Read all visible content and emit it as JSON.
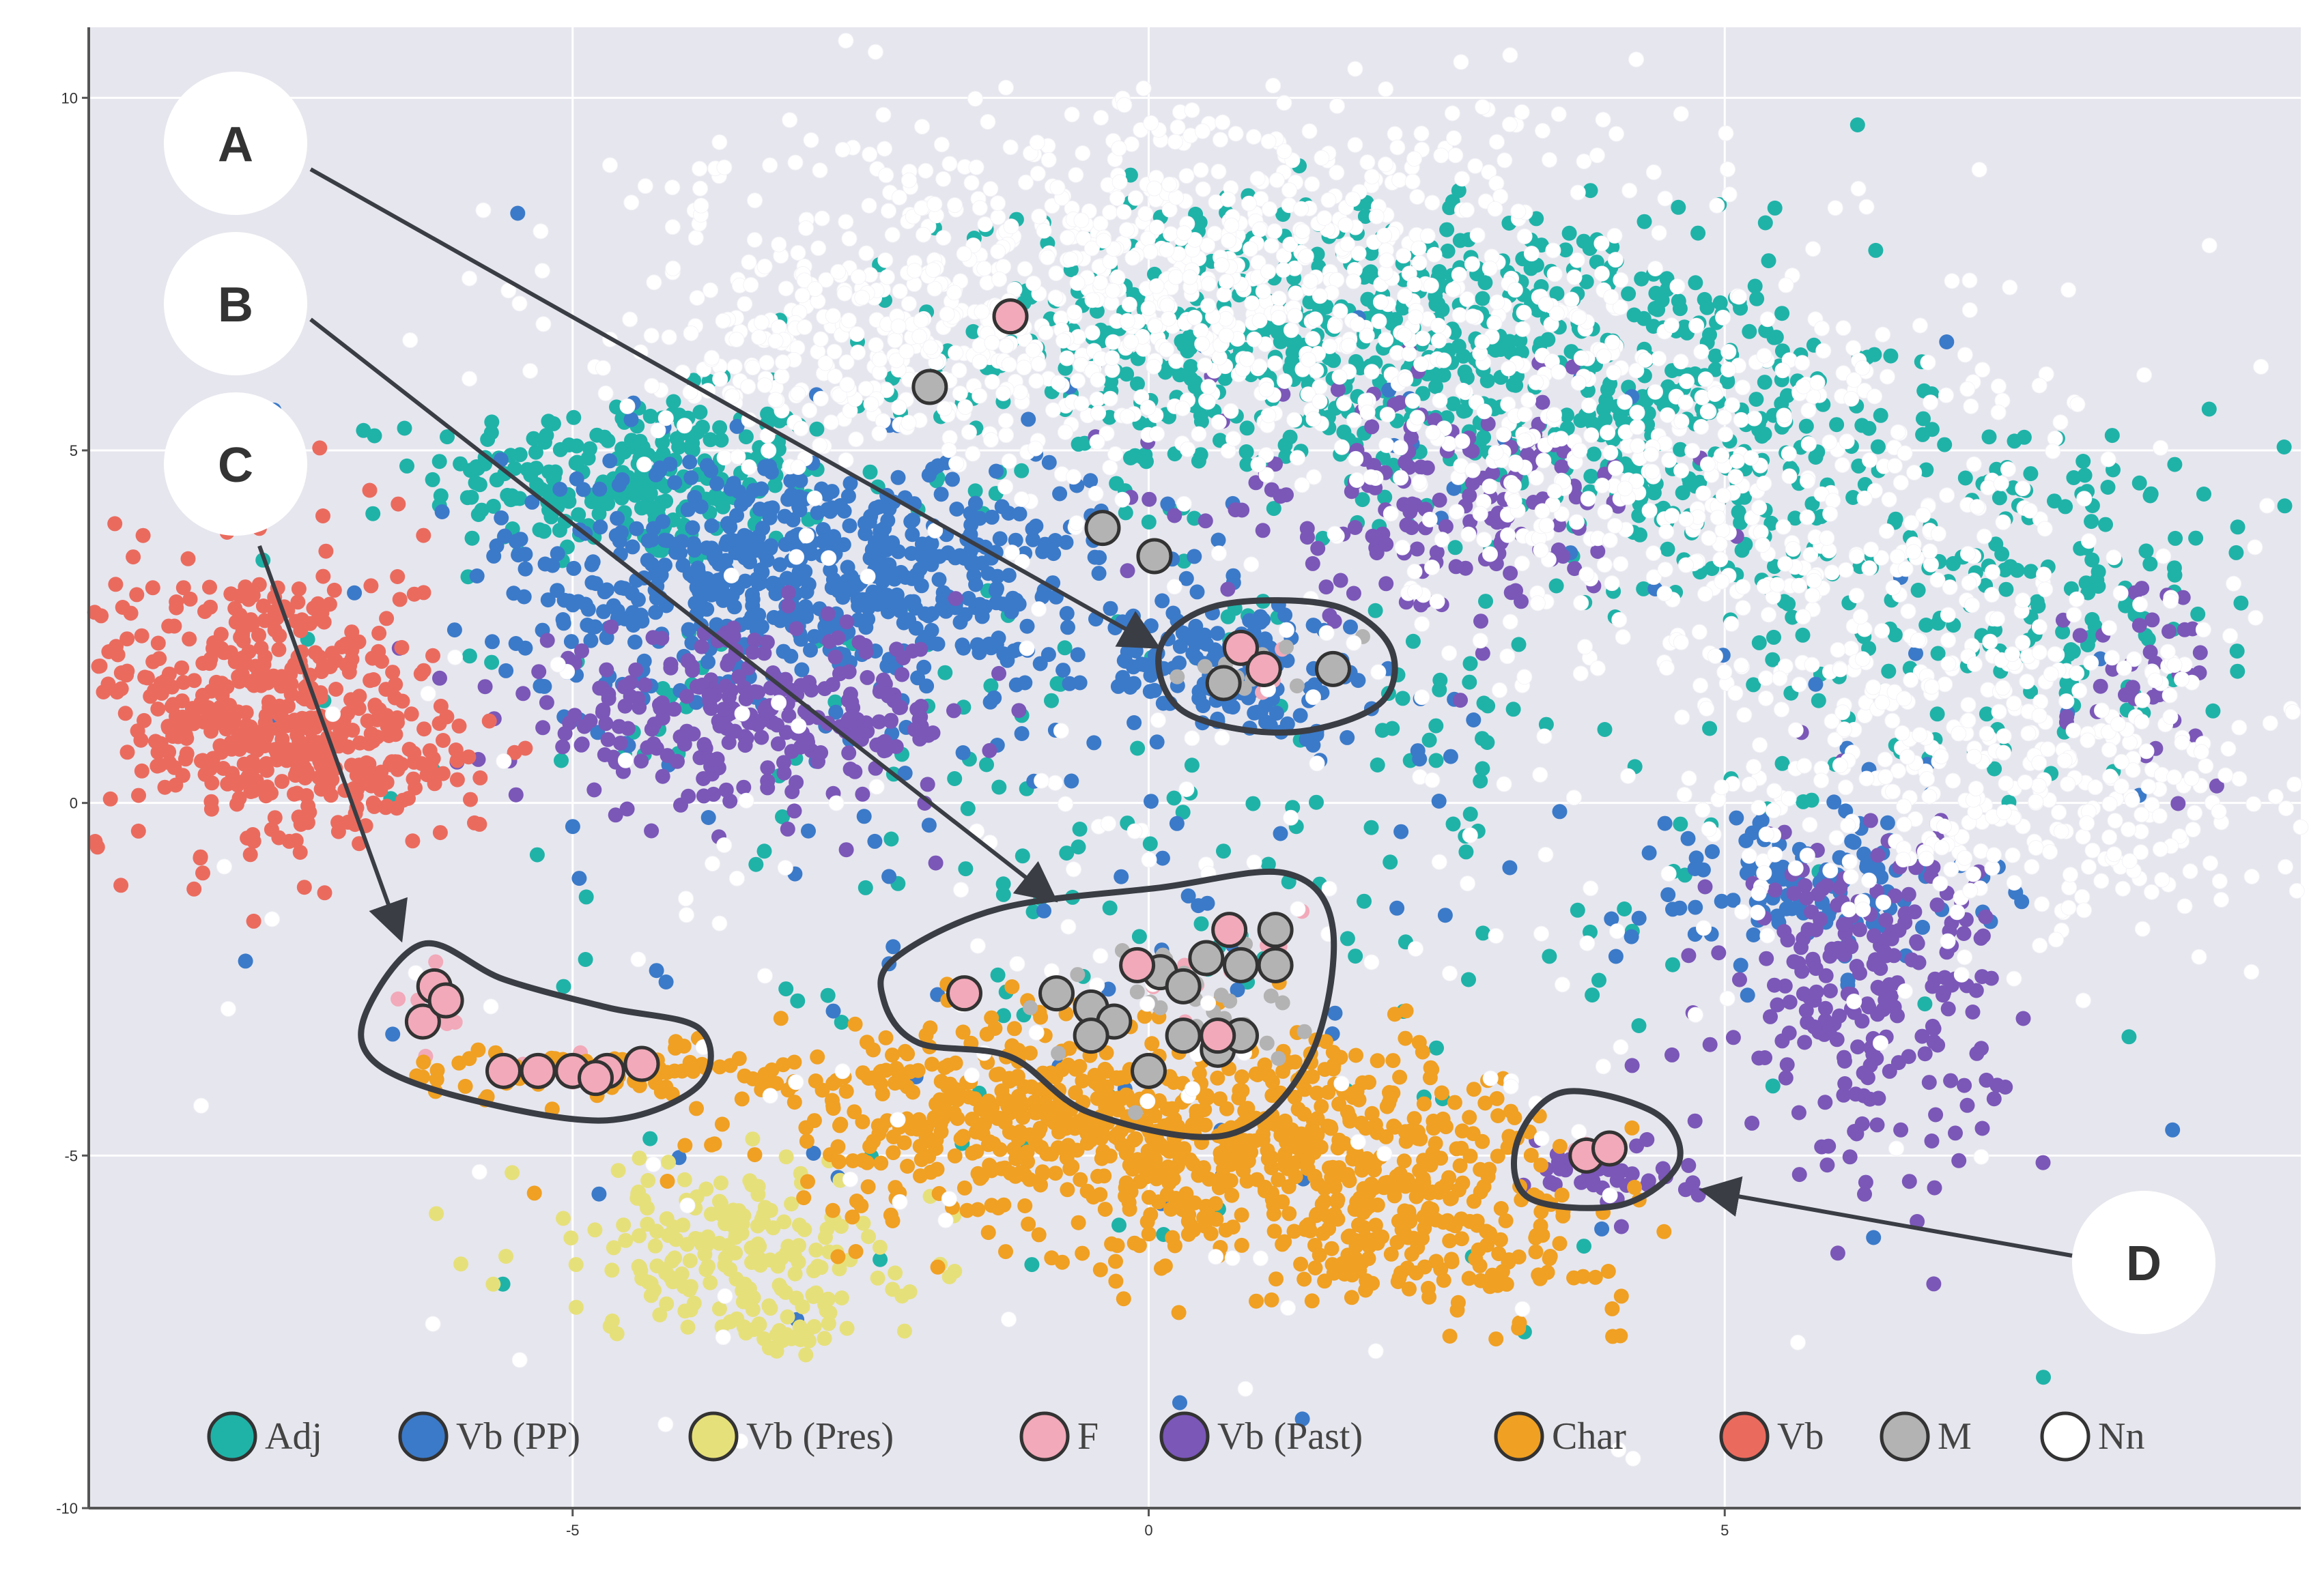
{
  "chart_data": {
    "type": "scatter",
    "title": "",
    "xlabel": "",
    "ylabel": "",
    "xlim": [
      -9.2,
      10.0
    ],
    "ylim": [
      -10.0,
      11.0
    ],
    "x_ticks": [
      -5,
      0,
      5
    ],
    "y_ticks": [
      10,
      5,
      0,
      -5,
      -10
    ],
    "x_tick_labels": [
      "-5",
      "0",
      "5"
    ],
    "y_tick_labels": [
      "10",
      "5",
      "0",
      "-5",
      "-10"
    ],
    "grid": true,
    "legend_position": "bottom",
    "series": [
      {
        "name": "Adj",
        "color": "#1fb3a8",
        "clusters": [
          {
            "cx": -4.5,
            "cy": 4.6,
            "sx": 0.9,
            "sy": 0.6,
            "n": 260
          },
          {
            "cx": 1.5,
            "cy": 6.5,
            "sx": 1.6,
            "sy": 1.0,
            "n": 520
          },
          {
            "cx": 4.5,
            "cy": 5.5,
            "sx": 1.0,
            "sy": 1.2,
            "n": 280
          },
          {
            "cx": 7.5,
            "cy": 3.2,
            "sx": 1.2,
            "sy": 1.2,
            "n": 200
          },
          {
            "cx": 0.5,
            "cy": 0.5,
            "sx": 3.5,
            "sy": 3.0,
            "n": 260
          }
        ]
      },
      {
        "name": "Vb (PP)",
        "color": "#3b7ac9",
        "clusters": [
          {
            "cx": -3.0,
            "cy": 3.2,
            "sx": 1.3,
            "sy": 0.9,
            "n": 620
          },
          {
            "cx": 0.8,
            "cy": 1.9,
            "sx": 0.6,
            "sy": 0.5,
            "n": 140
          },
          {
            "cx": 5.7,
            "cy": -1.2,
            "sx": 0.8,
            "sy": 0.6,
            "n": 120
          },
          {
            "cx": 0.0,
            "cy": 0.0,
            "sx": 3.5,
            "sy": 3.5,
            "n": 120
          }
        ]
      },
      {
        "name": "Vb (Pres)",
        "color": "#e6e07a",
        "clusters": [
          {
            "cx": -3.7,
            "cy": -6.3,
            "sx": 0.9,
            "sy": 0.6,
            "n": 170
          },
          {
            "cx": -3.1,
            "cy": -7.2,
            "sx": 0.4,
            "sy": 0.4,
            "n": 50
          }
        ]
      },
      {
        "name": "F",
        "color": "#f2a9b9",
        "clusters": [
          {
            "cx": -6.2,
            "cy": -2.9,
            "sx": 0.15,
            "sy": 0.4,
            "n": 10
          },
          {
            "cx": -5.0,
            "cy": -3.8,
            "sx": 0.4,
            "sy": 0.1,
            "n": 12
          },
          {
            "cx": 0.9,
            "cy": 2.0,
            "sx": 0.15,
            "sy": 0.2,
            "n": 6
          },
          {
            "cx": 0.5,
            "cy": -2.5,
            "sx": 0.4,
            "sy": 0.5,
            "n": 8
          },
          {
            "cx": 3.8,
            "cy": -4.9,
            "sx": 0.1,
            "sy": 0.05,
            "n": 3
          }
        ]
      },
      {
        "name": "Vb (Past)",
        "color": "#7b57b8",
        "clusters": [
          {
            "cx": -3.5,
            "cy": 1.2,
            "sx": 1.0,
            "sy": 0.6,
            "n": 280
          },
          {
            "cx": 2.5,
            "cy": 4.2,
            "sx": 1.0,
            "sy": 0.8,
            "n": 160
          },
          {
            "cx": 6.2,
            "cy": -2.6,
            "sx": 0.6,
            "sy": 1.2,
            "n": 240
          },
          {
            "cx": 3.9,
            "cy": -5.2,
            "sx": 0.3,
            "sy": 0.25,
            "n": 40
          },
          {
            "cx": 8.8,
            "cy": 1.8,
            "sx": 0.4,
            "sy": 0.8,
            "n": 40
          }
        ]
      },
      {
        "name": "Char",
        "color": "#f0a022",
        "clusters": [
          {
            "cx": -1.0,
            "cy": -4.5,
            "sx": 1.2,
            "sy": 0.7,
            "n": 420
          },
          {
            "cx": 1.3,
            "cy": -5.0,
            "sx": 1.2,
            "sy": 0.8,
            "n": 420
          },
          {
            "cx": 2.5,
            "cy": -6.2,
            "sx": 0.8,
            "sy": 0.5,
            "n": 140
          },
          {
            "cx": -4.8,
            "cy": -3.8,
            "sx": 0.9,
            "sy": 0.2,
            "n": 80
          }
        ]
      },
      {
        "name": "Vb",
        "color": "#ea6b5e",
        "clusters": [
          {
            "cx": -7.7,
            "cy": 1.4,
            "sx": 0.7,
            "sy": 1.1,
            "n": 420
          },
          {
            "cx": -6.9,
            "cy": 0.6,
            "sx": 0.6,
            "sy": 0.6,
            "n": 120
          }
        ]
      },
      {
        "name": "M",
        "color": "#b3b3b3",
        "clusters": [
          {
            "cx": 0.9,
            "cy": 1.9,
            "sx": 0.35,
            "sy": 0.25,
            "n": 10
          },
          {
            "cx": 0.3,
            "cy": -2.8,
            "sx": 0.6,
            "sy": 0.45,
            "n": 30
          }
        ]
      },
      {
        "name": "Nn",
        "color": "#ffffff",
        "clusters": [
          {
            "cx": 0.3,
            "cy": 7.5,
            "sx": 2.0,
            "sy": 1.3,
            "n": 800
          },
          {
            "cx": 5.0,
            "cy": 4.5,
            "sx": 1.8,
            "sy": 1.6,
            "n": 520
          },
          {
            "cx": 7.5,
            "cy": 0.3,
            "sx": 1.3,
            "sy": 1.2,
            "n": 420
          },
          {
            "cx": -2.5,
            "cy": 6.5,
            "sx": 1.2,
            "sy": 1.0,
            "n": 260
          },
          {
            "cx": 0.0,
            "cy": -1.5,
            "sx": 3.5,
            "sy": 3.5,
            "n": 160
          }
        ]
      }
    ],
    "highlight_points": {
      "F": [
        [
          -1.2,
          6.9
        ],
        [
          0.8,
          2.2
        ],
        [
          1.0,
          1.9
        ],
        [
          -1.6,
          -2.7
        ],
        [
          -0.1,
          -2.3
        ],
        [
          0.7,
          -1.8
        ],
        [
          0.6,
          -3.3
        ],
        [
          -6.2,
          -2.6
        ],
        [
          -6.3,
          -3.1
        ],
        [
          -6.1,
          -2.8
        ],
        [
          -5.6,
          -3.8
        ],
        [
          -5.3,
          -3.8
        ],
        [
          -5.0,
          -3.8
        ],
        [
          -4.7,
          -3.8
        ],
        [
          -4.4,
          -3.7
        ],
        [
          -4.8,
          -3.9
        ],
        [
          3.8,
          -5.0
        ],
        [
          4.0,
          -4.9
        ]
      ],
      "M": [
        [
          -1.9,
          5.9
        ],
        [
          -0.4,
          3.9
        ],
        [
          0.05,
          3.5
        ],
        [
          0.65,
          1.7
        ],
        [
          1.0,
          1.9
        ],
        [
          1.6,
          1.9
        ],
        [
          -0.8,
          -2.7
        ],
        [
          -0.5,
          -2.9
        ],
        [
          -0.3,
          -3.1
        ],
        [
          0.1,
          -2.4
        ],
        [
          0.3,
          -2.6
        ],
        [
          0.5,
          -2.2
        ],
        [
          0.8,
          -2.3
        ],
        [
          1.1,
          -1.8
        ],
        [
          1.1,
          -2.3
        ],
        [
          0.0,
          -3.8
        ],
        [
          0.3,
          -3.3
        ],
        [
          0.6,
          -3.5
        ],
        [
          0.8,
          -3.3
        ],
        [
          -0.5,
          -3.3
        ]
      ]
    },
    "callouts": [
      {
        "label": "A"
      },
      {
        "label": "B"
      },
      {
        "label": "C"
      },
      {
        "label": "D"
      }
    ],
    "legend": [
      {
        "label": "Adj",
        "color": "#1fb3a8"
      },
      {
        "label": "Vb (PP)",
        "color": "#3b7ac9"
      },
      {
        "label": "Vb (Pres)",
        "color": "#e6e07a"
      },
      {
        "label": "F",
        "color": "#f2a9b9"
      },
      {
        "label": "Vb (Past)",
        "color": "#7b57b8"
      },
      {
        "label": "Char",
        "color": "#f0a022"
      },
      {
        "label": "Vb",
        "color": "#ea6b5e"
      },
      {
        "label": "M",
        "color": "#b3b3b3"
      },
      {
        "label": "Nn",
        "color": "#ffffff"
      }
    ]
  }
}
